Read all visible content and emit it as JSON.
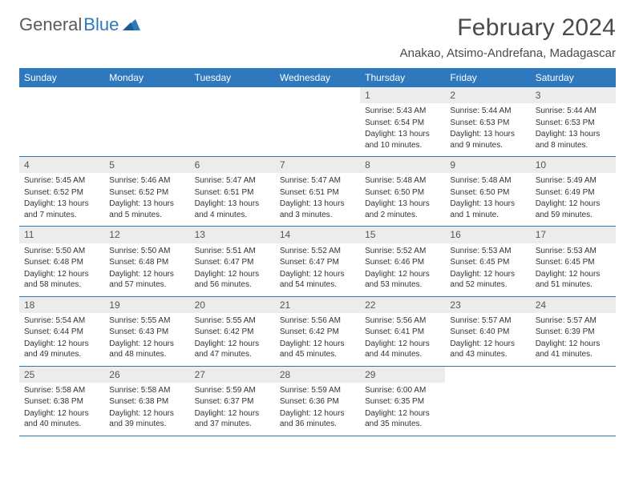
{
  "logo": {
    "text1": "General",
    "text2": "Blue"
  },
  "title": "February 2024",
  "location": "Anakao, Atsimo-Andrefana, Madagascar",
  "colors": {
    "header_bg": "#2e78bd",
    "header_text": "#ffffff",
    "daynum_bg": "#ececec",
    "border": "#2e78bd",
    "body_text": "#333333"
  },
  "weekdays": [
    "Sunday",
    "Monday",
    "Tuesday",
    "Wednesday",
    "Thursday",
    "Friday",
    "Saturday"
  ],
  "weeks": [
    [
      null,
      null,
      null,
      null,
      {
        "n": "1",
        "sunrise": "5:43 AM",
        "sunset": "6:54 PM",
        "daylight": "13 hours and 10 minutes."
      },
      {
        "n": "2",
        "sunrise": "5:44 AM",
        "sunset": "6:53 PM",
        "daylight": "13 hours and 9 minutes."
      },
      {
        "n": "3",
        "sunrise": "5:44 AM",
        "sunset": "6:53 PM",
        "daylight": "13 hours and 8 minutes."
      }
    ],
    [
      {
        "n": "4",
        "sunrise": "5:45 AM",
        "sunset": "6:52 PM",
        "daylight": "13 hours and 7 minutes."
      },
      {
        "n": "5",
        "sunrise": "5:46 AM",
        "sunset": "6:52 PM",
        "daylight": "13 hours and 5 minutes."
      },
      {
        "n": "6",
        "sunrise": "5:47 AM",
        "sunset": "6:51 PM",
        "daylight": "13 hours and 4 minutes."
      },
      {
        "n": "7",
        "sunrise": "5:47 AM",
        "sunset": "6:51 PM",
        "daylight": "13 hours and 3 minutes."
      },
      {
        "n": "8",
        "sunrise": "5:48 AM",
        "sunset": "6:50 PM",
        "daylight": "13 hours and 2 minutes."
      },
      {
        "n": "9",
        "sunrise": "5:48 AM",
        "sunset": "6:50 PM",
        "daylight": "13 hours and 1 minute."
      },
      {
        "n": "10",
        "sunrise": "5:49 AM",
        "sunset": "6:49 PM",
        "daylight": "12 hours and 59 minutes."
      }
    ],
    [
      {
        "n": "11",
        "sunrise": "5:50 AM",
        "sunset": "6:48 PM",
        "daylight": "12 hours and 58 minutes."
      },
      {
        "n": "12",
        "sunrise": "5:50 AM",
        "sunset": "6:48 PM",
        "daylight": "12 hours and 57 minutes."
      },
      {
        "n": "13",
        "sunrise": "5:51 AM",
        "sunset": "6:47 PM",
        "daylight": "12 hours and 56 minutes."
      },
      {
        "n": "14",
        "sunrise": "5:52 AM",
        "sunset": "6:47 PM",
        "daylight": "12 hours and 54 minutes."
      },
      {
        "n": "15",
        "sunrise": "5:52 AM",
        "sunset": "6:46 PM",
        "daylight": "12 hours and 53 minutes."
      },
      {
        "n": "16",
        "sunrise": "5:53 AM",
        "sunset": "6:45 PM",
        "daylight": "12 hours and 52 minutes."
      },
      {
        "n": "17",
        "sunrise": "5:53 AM",
        "sunset": "6:45 PM",
        "daylight": "12 hours and 51 minutes."
      }
    ],
    [
      {
        "n": "18",
        "sunrise": "5:54 AM",
        "sunset": "6:44 PM",
        "daylight": "12 hours and 49 minutes."
      },
      {
        "n": "19",
        "sunrise": "5:55 AM",
        "sunset": "6:43 PM",
        "daylight": "12 hours and 48 minutes."
      },
      {
        "n": "20",
        "sunrise": "5:55 AM",
        "sunset": "6:42 PM",
        "daylight": "12 hours and 47 minutes."
      },
      {
        "n": "21",
        "sunrise": "5:56 AM",
        "sunset": "6:42 PM",
        "daylight": "12 hours and 45 minutes."
      },
      {
        "n": "22",
        "sunrise": "5:56 AM",
        "sunset": "6:41 PM",
        "daylight": "12 hours and 44 minutes."
      },
      {
        "n": "23",
        "sunrise": "5:57 AM",
        "sunset": "6:40 PM",
        "daylight": "12 hours and 43 minutes."
      },
      {
        "n": "24",
        "sunrise": "5:57 AM",
        "sunset": "6:39 PM",
        "daylight": "12 hours and 41 minutes."
      }
    ],
    [
      {
        "n": "25",
        "sunrise": "5:58 AM",
        "sunset": "6:38 PM",
        "daylight": "12 hours and 40 minutes."
      },
      {
        "n": "26",
        "sunrise": "5:58 AM",
        "sunset": "6:38 PM",
        "daylight": "12 hours and 39 minutes."
      },
      {
        "n": "27",
        "sunrise": "5:59 AM",
        "sunset": "6:37 PM",
        "daylight": "12 hours and 37 minutes."
      },
      {
        "n": "28",
        "sunrise": "5:59 AM",
        "sunset": "6:36 PM",
        "daylight": "12 hours and 36 minutes."
      },
      {
        "n": "29",
        "sunrise": "6:00 AM",
        "sunset": "6:35 PM",
        "daylight": "12 hours and 35 minutes."
      },
      null,
      null
    ]
  ],
  "labels": {
    "sunrise_prefix": "Sunrise: ",
    "sunset_prefix": "Sunset: ",
    "daylight_prefix": "Daylight: "
  }
}
